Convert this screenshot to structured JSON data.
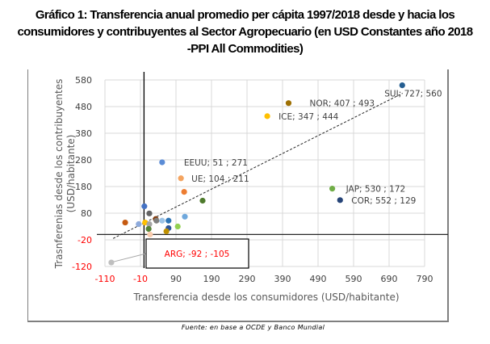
{
  "title": {
    "line1": "Gráfico 1: Transferencia anual promedio per cápita 1997/2018 desde y hacia los",
    "line2": "consumidores y contribuyentes al Sector Agropecuario (en USD Constantes año 2018",
    "line3": "-PPI All Commodities)"
  },
  "source": "Fuente: en base a OCDE y Banco Mundial",
  "chart_data": {
    "type": "scatter",
    "title": "Gráfico 1: Transferencia anual promedio per cápita 1997/2018 desde y hacia los consumidores y contribuyentes al Sector Agropecuario (en USD Constantes año 2018 -PPI All Commodities)",
    "xlabel": "Transferencia desde los consumidores (USD/habitante)",
    "ylabel_line1": "Trasnferenias desde los contribuyentes",
    "ylabel_line2": "(USD/habitante)",
    "xlim": [
      -110,
      790
    ],
    "ylim": [
      -120,
      580
    ],
    "xticks": [
      -110,
      -10,
      90,
      190,
      290,
      390,
      490,
      590,
      690,
      790
    ],
    "yticks": [
      580,
      480,
      380,
      280,
      180,
      80,
      -20,
      -120
    ],
    "xtick_labels": [
      "-110",
      "-10",
      "90",
      "190",
      "290",
      "390",
      "490",
      "590",
      "690",
      "790"
    ],
    "ytick_labels": [
      "580",
      "480",
      "380",
      "280",
      "180",
      "80",
      "-20",
      "-120"
    ],
    "negative_tick_color": "#ff0000",
    "positive_tick_color": "#404040",
    "grid": true,
    "reference_lines": {
      "x": 0,
      "y": 0
    },
    "trendline": {
      "style": "dashed",
      "from": [
        -87,
        -15
      ],
      "to": [
        728,
        530
      ]
    },
    "points": [
      {
        "name": "SUI",
        "x": 727,
        "y": 560,
        "color": "#255e91",
        "label": "SUI; 727; 560"
      },
      {
        "name": "NOR",
        "x": 407,
        "y": 493,
        "color": "#9e7004",
        "label": "NOR; 407 ; 493"
      },
      {
        "name": "ICE",
        "x": 347,
        "y": 444,
        "color": "#ffc000",
        "label": "ICE; 347 ; 444"
      },
      {
        "name": "EEUU",
        "x": 51,
        "y": 271,
        "color": "#5b8cd6",
        "label": "EEUU; 51 ; 271"
      },
      {
        "name": "UE",
        "x": 104,
        "y": 211,
        "color": "#f4a460",
        "label": "UE; 104 ; 211"
      },
      {
        "name": "JAP",
        "x": 530,
        "y": 172,
        "color": "#70ad47",
        "label": "JAP; 530 ; 172"
      },
      {
        "name": "COR",
        "x": 552,
        "y": 129,
        "color": "#264478",
        "label": "COR; 552 ; 129"
      },
      {
        "name": "ARG",
        "x": -92,
        "y": -105,
        "color": "#bfbfbf",
        "label": "ARG; -92 ; -105"
      },
      {
        "name": "",
        "x": 113,
        "y": 160,
        "color": "#ed7d31",
        "label": ""
      },
      {
        "name": "",
        "x": 165,
        "y": 127,
        "color": "#4e7a2c",
        "label": ""
      },
      {
        "name": "",
        "x": 1,
        "y": 106,
        "color": "#4472c4",
        "label": ""
      },
      {
        "name": "",
        "x": 15,
        "y": 79,
        "color": "#636363",
        "label": ""
      },
      {
        "name": "",
        "x": -53,
        "y": 45,
        "color": "#c55a11",
        "label": ""
      },
      {
        "name": "",
        "x": -15,
        "y": 39,
        "color": "#8eaadb",
        "label": ""
      },
      {
        "name": "",
        "x": 3,
        "y": 45,
        "color": "#ffc000",
        "label": ""
      },
      {
        "name": "",
        "x": 15,
        "y": 39,
        "color": "#a5a5a5",
        "label": ""
      },
      {
        "name": "",
        "x": 33,
        "y": 58,
        "color": "#843c0c",
        "label": ""
      },
      {
        "name": "",
        "x": 35,
        "y": 52,
        "color": "#7f7f7f",
        "label": ""
      },
      {
        "name": "",
        "x": 51,
        "y": 52,
        "color": "#9dc3e6",
        "label": ""
      },
      {
        "name": "",
        "x": 69,
        "y": 52,
        "color": "#2e75b6",
        "label": ""
      },
      {
        "name": "",
        "x": 115,
        "y": 67,
        "color": "#6fa8dc",
        "label": ""
      },
      {
        "name": "",
        "x": 95,
        "y": 30,
        "color": "#92d050",
        "label": ""
      },
      {
        "name": "",
        "x": 13,
        "y": 21,
        "color": "#548235",
        "label": ""
      },
      {
        "name": "",
        "x": 69,
        "y": 24,
        "color": "#2f5597",
        "label": ""
      },
      {
        "name": "",
        "x": 17,
        "y": 0,
        "color": "#f8cbad",
        "label": ""
      },
      {
        "name": "",
        "x": 63,
        "y": 12,
        "color": "#bf9000",
        "label": ""
      }
    ],
    "callout": {
      "text": "ARG; -92 ; -105",
      "color": "#ff0000",
      "leader_color": "#a6a6a6"
    }
  }
}
